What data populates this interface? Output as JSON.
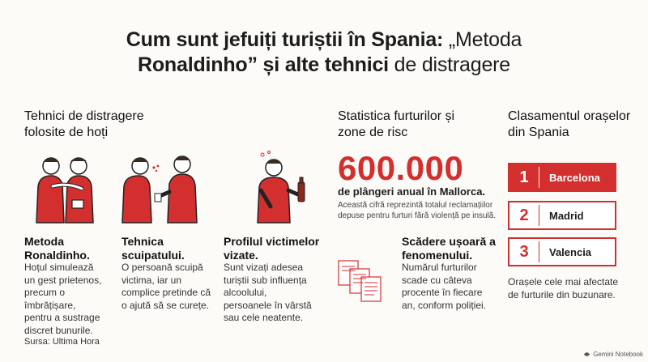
{
  "title": {
    "line1_bold": "Cum sunt jefuiți turiștii în Spania:",
    "line1_light": " „Metoda",
    "line2_bold": "Ronaldinho” și alte tehnici",
    "line2_light": " de distragere"
  },
  "techniques": {
    "heading": "Tehnici de distragere folosite de hoți",
    "items": [
      {
        "title": "Metoda Ronaldinho.",
        "text": "Hoțul simulează un gest prietenos, precum o îmbrățișare, pentru a sustrage discret bunurile."
      },
      {
        "title": "Tehnica scuipatului.",
        "text": "O persoană scuipă victima, iar un complice pretinde că o ajută să se curețe."
      },
      {
        "title": "Profilul victimelor vizate.",
        "text": "Sunt vizați adesea turiștii sub influența alcoolului, persoanele în vârstă sau cele neatente."
      }
    ]
  },
  "statistics": {
    "heading": "Statistica furturilor și zone de risc",
    "big_number": "600.000",
    "big_label": "de plângeri anual în Mallorca.",
    "big_desc": "Această cifră reprezintă totalul reclamațiilor depuse pentru furturi fără violență pe insulă.",
    "decrease_title": "Scădere ușoară a fenomenului.",
    "decrease_text": "Numărul furturilor scade cu câteva procente în fiecare an, conform poliției."
  },
  "ranking": {
    "heading": "Clasamentul orașelor din Spania",
    "items": [
      {
        "rank": "1",
        "city": "Barcelona"
      },
      {
        "rank": "2",
        "city": "Madrid"
      },
      {
        "rank": "3",
        "city": "Valencia"
      }
    ],
    "note": "Orașele cele mai afectate de furturile din buzunare."
  },
  "source": "Sursa: Ultima Hora",
  "brand": "Gemini Notebook",
  "colors": {
    "accent": "#d32f2f",
    "background": "#fcfbf8"
  }
}
